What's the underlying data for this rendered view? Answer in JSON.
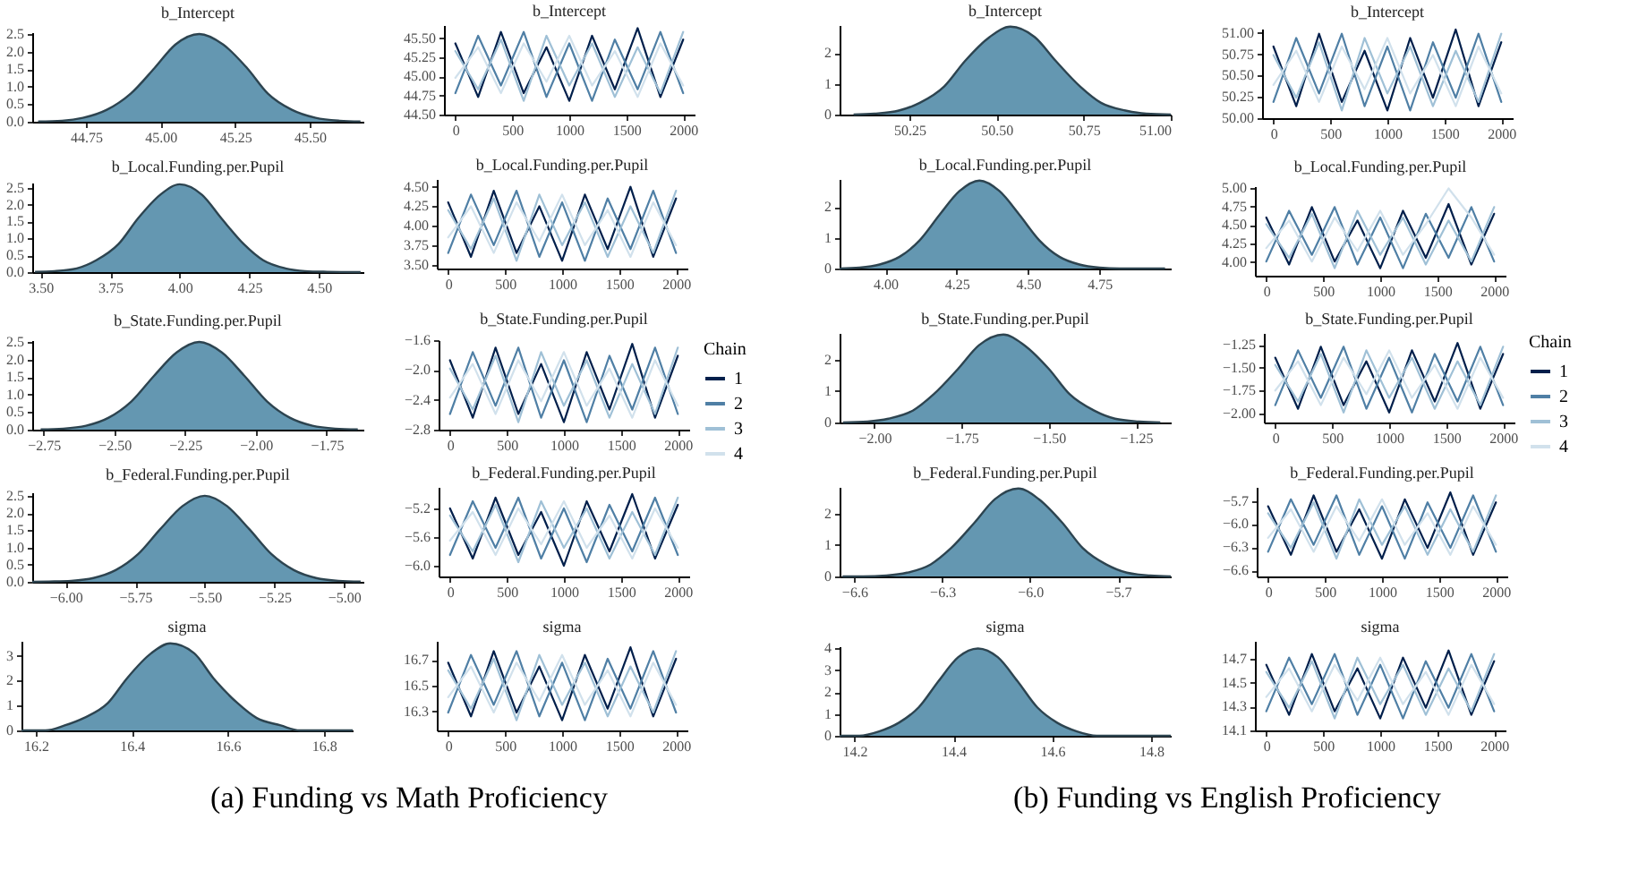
{
  "chart_data": [
    {
      "type": "area",
      "title": "b_Intercept",
      "x": [
        44.59,
        44.67,
        44.74,
        44.82,
        44.9,
        44.98,
        45.05,
        45.13,
        45.21,
        45.29,
        45.36,
        45.44,
        45.52,
        45.6,
        45.67
      ],
      "series": [
        {
          "color": "#6497b1",
          "values": [
            0.01,
            0.03,
            0.11,
            0.34,
            0.8,
            1.53,
            2.2,
            2.5,
            2.2,
            1.53,
            0.8,
            0.34,
            0.11,
            0.03,
            0.01
          ]
        }
      ],
      "xlim": [
        44.57,
        45.68
      ],
      "xticks": [
        44.75,
        {
          "value": 45,
          "label": "45.00"
        },
        45.25,
        {
          "value": 45.5,
          "label": "45.50"
        }
      ],
      "ylim": [
        0,
        2.55
      ],
      "yticks": [
        {
          "value": 0,
          "label": "0.0"
        },
        0.5,
        {
          "value": 1,
          "label": "1.0"
        },
        1.5,
        {
          "value": 2,
          "label": "2.0"
        },
        2.5
      ]
    },
    {
      "type": "line",
      "title": "b_Intercept",
      "x": [
        0,
        200,
        400,
        600,
        800,
        1000,
        1200,
        1400,
        1600,
        1800,
        2000
      ],
      "series": [
        {
          "color": "#011f4b",
          "values": [
            45.43,
            44.73,
            45.58,
            44.78,
            45.38,
            44.68,
            45.53,
            44.83,
            45.63,
            44.73,
            45.48
          ]
        },
        {
          "color": "#4f7fa5",
          "values": [
            44.78,
            45.53,
            44.88,
            45.58,
            44.73,
            45.43,
            44.68,
            45.48,
            44.83,
            45.58,
            44.78
          ]
        },
        {
          "color": "#9fc0d6",
          "values": [
            45.33,
            44.83,
            45.48,
            44.68,
            45.53,
            44.88,
            45.43,
            44.73,
            45.38,
            44.78,
            45.58
          ]
        },
        {
          "color": "#d1e1ec",
          "values": [
            44.98,
            45.38,
            44.78,
            45.43,
            44.93,
            45.53,
            44.88,
            45.33,
            44.73,
            45.43,
            44.88
          ]
        }
      ],
      "xlim": [
        -100,
        2100
      ],
      "xticks": [
        0,
        500,
        1000,
        1500,
        2000
      ],
      "ylim": [
        44.5,
        45.67
      ],
      "yticks": [
        {
          "value": 44.5,
          "label": "44.50"
        },
        44.75,
        {
          "value": 45,
          "label": "45.00"
        },
        45.25,
        {
          "value": 45.5,
          "label": "45.50"
        }
      ]
    },
    {
      "type": "area",
      "title": "b_Local.Funding.per.Pupil",
      "x": [
        3.48,
        3.55,
        3.63,
        3.7,
        3.78,
        3.85,
        3.93,
        4.0,
        4.08,
        4.15,
        4.23,
        4.3,
        4.38,
        4.45,
        4.53,
        4.65
      ],
      "series": [
        {
          "color": "#6497b1",
          "values": [
            0.01,
            0.03,
            0.11,
            0.35,
            0.83,
            1.59,
            2.29,
            2.6,
            2.29,
            1.59,
            0.83,
            0.35,
            0.11,
            0.03,
            0.01,
            0
          ]
        }
      ],
      "xlim": [
        3.47,
        4.66
      ],
      "xticks": [
        {
          "value": 3.5,
          "label": "3.50"
        },
        3.75,
        {
          "value": 4,
          "label": "4.00"
        },
        4.25,
        {
          "value": 4.5,
          "label": "4.50"
        }
      ],
      "ylim": [
        0,
        2.65
      ],
      "yticks": [
        {
          "value": 0,
          "label": "0.0"
        },
        0.5,
        {
          "value": 1,
          "label": "1.0"
        },
        1.5,
        {
          "value": 2,
          "label": "2.0"
        },
        2.5
      ]
    },
    {
      "type": "line",
      "title": "b_Local.Funding.per.Pupil",
      "x": [
        0,
        200,
        400,
        600,
        800,
        1000,
        1200,
        1400,
        1600,
        1800,
        2000
      ],
      "series": [
        {
          "color": "#011f4b",
          "values": [
            4.3,
            3.6,
            4.45,
            3.65,
            4.25,
            3.55,
            4.4,
            3.7,
            4.5,
            3.6,
            4.35
          ]
        },
        {
          "color": "#4f7fa5",
          "values": [
            3.65,
            4.4,
            3.75,
            4.45,
            3.6,
            4.3,
            3.55,
            4.35,
            3.7,
            4.45,
            3.65
          ]
        },
        {
          "color": "#9fc0d6",
          "values": [
            4.2,
            3.7,
            4.35,
            3.55,
            4.4,
            3.75,
            4.3,
            3.6,
            4.25,
            3.65,
            4.45
          ]
        },
        {
          "color": "#d1e1ec",
          "values": [
            3.85,
            4.25,
            3.65,
            4.3,
            3.8,
            4.4,
            3.75,
            4.2,
            3.6,
            4.3,
            3.75
          ]
        }
      ],
      "xlim": [
        -100,
        2100
      ],
      "xticks": [
        0,
        500,
        1000,
        1500,
        2000
      ],
      "ylim": [
        3.45,
        4.6
      ],
      "yticks": [
        {
          "value": 3.5,
          "label": "3.50"
        },
        3.75,
        {
          "value": 4,
          "label": "4.00"
        },
        4.25,
        {
          "value": 4.5,
          "label": "4.50"
        }
      ]
    },
    {
      "type": "area",
      "title": "b_State.Funding.per.Pupil",
      "x": [
        -2.76,
        -2.68,
        -2.6,
        -2.52,
        -2.44,
        -2.36,
        -2.28,
        -2.2,
        -2.12,
        -2.04,
        -1.96,
        -1.88,
        -1.8,
        -1.72,
        -1.64
      ],
      "series": [
        {
          "color": "#6497b1",
          "values": [
            0.01,
            0.03,
            0.11,
            0.34,
            0.8,
            1.53,
            2.2,
            2.5,
            2.2,
            1.53,
            0.8,
            0.34,
            0.11,
            0.03,
            0.01
          ]
        }
      ],
      "xlim": [
        -2.79,
        -1.62
      ],
      "xticks": [
        {
          "value": -2.75,
          "label": "−2.75"
        },
        {
          "value": -2.5,
          "label": "−2.50"
        },
        {
          "value": -2.25,
          "label": "−2.25"
        },
        {
          "value": -2,
          "label": "−2.00"
        },
        {
          "value": -1.75,
          "label": "−1.75"
        }
      ],
      "ylim": [
        0,
        2.55
      ],
      "yticks": [
        {
          "value": 0,
          "label": "0.0"
        },
        0.5,
        {
          "value": 1,
          "label": "1.0"
        },
        1.5,
        {
          "value": 2,
          "label": "2.0"
        },
        2.5
      ]
    },
    {
      "type": "line",
      "title": "b_State.Funding.per.Pupil",
      "legend": "right",
      "legend_title": "Chain",
      "x": [
        0,
        200,
        400,
        600,
        800,
        1000,
        1200,
        1400,
        1600,
        1800,
        2000
      ],
      "series": [
        {
          "name": "1",
          "color": "#011f4b",
          "values": [
            -1.87,
            -2.64,
            -1.7,
            -2.59,
            -1.92,
            -2.7,
            -1.76,
            -2.53,
            -1.65,
            -2.64,
            -1.81
          ]
        },
        {
          "name": "2",
          "color": "#4f7fa5",
          "values": [
            -2.59,
            -1.76,
            -2.48,
            -1.7,
            -2.64,
            -1.87,
            -2.7,
            -1.81,
            -2.53,
            -1.7,
            -2.59
          ]
        },
        {
          "name": "3",
          "color": "#9fc0d6",
          "values": [
            -1.98,
            -2.53,
            -1.81,
            -2.7,
            -1.76,
            -2.48,
            -1.87,
            -2.64,
            -1.92,
            -2.59,
            -1.7
          ]
        },
        {
          "name": "4",
          "color": "#d1e1ec",
          "values": [
            -2.37,
            -1.92,
            -2.59,
            -1.87,
            -2.42,
            -1.76,
            -2.48,
            -1.98,
            -2.64,
            -1.87,
            -2.48
          ]
        }
      ],
      "xlim": [
        -100,
        2100
      ],
      "xticks": [
        0,
        500,
        1000,
        1500,
        2000
      ],
      "ylim": [
        -2.8,
        -1.6
      ],
      "yticks": [
        {
          "value": -2.8,
          "label": "−2.8"
        },
        {
          "value": -2.4,
          "label": "−2.4"
        },
        {
          "value": -2,
          "label": "−2.0"
        },
        {
          "value": -1.6,
          "label": "−1.6"
        }
      ]
    },
    {
      "type": "area",
      "title": "b_Federal.Funding.per.Pupil",
      "x": [
        -6.12,
        -6.06,
        -5.98,
        -5.9,
        -5.82,
        -5.74,
        -5.66,
        -5.58,
        -5.5,
        -5.42,
        -5.34,
        -5.26,
        -5.18,
        -5.1,
        -5.02,
        -4.94
      ],
      "series": [
        {
          "color": "#6497b1",
          "values": [
            0,
            0.01,
            0.03,
            0.11,
            0.34,
            0.8,
            1.53,
            2.2,
            2.5,
            2.2,
            1.53,
            0.8,
            0.34,
            0.11,
            0.03,
            0.01
          ]
        }
      ],
      "xlim": [
        -6.12,
        -4.93
      ],
      "xticks": [
        {
          "value": -6,
          "label": "−6.00"
        },
        {
          "value": -5.75,
          "label": "−5.75"
        },
        {
          "value": -5.5,
          "label": "−5.50"
        },
        {
          "value": -5.25,
          "label": "−5.25"
        },
        {
          "value": -5,
          "label": "−5.00"
        }
      ],
      "ylim": [
        0,
        2.6
      ],
      "yticks": [
        {
          "value": 0,
          "label": "0.0"
        },
        0.5,
        {
          "value": 1,
          "label": "1.0"
        },
        1.5,
        {
          "value": 2,
          "label": "2.0"
        },
        2.5
      ]
    },
    {
      "type": "line",
      "title": "b_Federal.Funding.per.Pupil",
      "x": [
        0,
        200,
        400,
        600,
        800,
        1000,
        1200,
        1400,
        1600,
        1800,
        2000
      ],
      "series": [
        {
          "color": "#011f4b",
          "values": [
            -5.2,
            -5.9,
            -5.05,
            -5.85,
            -5.25,
            -6.0,
            -5.1,
            -5.8,
            -5.0,
            -5.9,
            -5.15
          ]
        },
        {
          "color": "#4f7fa5",
          "values": [
            -5.85,
            -5.1,
            -5.75,
            -5.05,
            -5.9,
            -5.2,
            -5.95,
            -5.15,
            -5.8,
            -5.05,
            -5.85
          ]
        },
        {
          "color": "#9fc0d6",
          "values": [
            -5.3,
            -5.8,
            -5.15,
            -5.95,
            -5.1,
            -5.75,
            -5.2,
            -5.9,
            -5.25,
            -5.85,
            -5.05
          ]
        },
        {
          "color": "#d1e1ec",
          "values": [
            -5.65,
            -5.25,
            -5.85,
            -5.2,
            -5.7,
            -5.1,
            -5.75,
            -5.3,
            -5.9,
            -5.2,
            -5.75
          ]
        }
      ],
      "xlim": [
        -100,
        2100
      ],
      "xticks": [
        0,
        500,
        1000,
        1500,
        2000
      ],
      "ylim": [
        -6.15,
        -4.9
      ],
      "yticks": [
        {
          "value": -6,
          "label": "−6.0"
        },
        {
          "value": -5.6,
          "label": "−5.6"
        },
        {
          "value": -5.2,
          "label": "−5.2"
        }
      ]
    },
    {
      "type": "area",
      "title": "sigma",
      "annotations": [
        "(a) Funding vs Math Proficiency"
      ],
      "x": [
        16.17,
        16.22,
        16.26,
        16.3,
        16.35,
        16.39,
        16.44,
        16.48,
        16.53,
        16.57,
        16.62,
        16.66,
        16.71,
        16.75,
        16.8,
        16.86
      ],
      "series": [
        {
          "color": "#6497b1",
          "values": [
            0,
            0,
            0.2,
            0.5,
            1.1,
            2.1,
            3.1,
            3.5,
            3.1,
            2.1,
            1.1,
            0.5,
            0.2,
            0,
            0,
            0
          ]
        }
      ],
      "xlim": [
        16.17,
        16.86
      ],
      "xticks": [
        16.2,
        16.4,
        16.6,
        16.8
      ],
      "ylim": [
        0,
        3.6
      ],
      "yticks": [
        0,
        1,
        2,
        3
      ]
    },
    {
      "type": "line",
      "title": "sigma",
      "x": [
        0,
        200,
        400,
        600,
        800,
        1000,
        1200,
        1400,
        1600,
        1800,
        2000
      ],
      "series": [
        {
          "color": "#011f4b",
          "values": [
            16.68,
            16.26,
            16.77,
            16.29,
            16.65,
            16.23,
            16.74,
            16.32,
            16.8,
            16.26,
            16.71
          ]
        },
        {
          "color": "#4f7fa5",
          "values": [
            16.29,
            16.74,
            16.35,
            16.77,
            16.26,
            16.68,
            16.23,
            16.71,
            16.32,
            16.77,
            16.29
          ]
        },
        {
          "color": "#9fc0d6",
          "values": [
            16.62,
            16.32,
            16.71,
            16.23,
            16.74,
            16.35,
            16.68,
            16.26,
            16.65,
            16.29,
            16.77
          ]
        },
        {
          "color": "#d1e1ec",
          "values": [
            16.41,
            16.65,
            16.29,
            16.68,
            16.38,
            16.74,
            16.35,
            16.62,
            16.26,
            16.68,
            16.35
          ]
        }
      ],
      "xlim": [
        -100,
        2100
      ],
      "xticks": [
        0,
        500,
        1000,
        1500,
        2000
      ],
      "ylim": [
        16.15,
        16.85
      ],
      "yticks": [
        16.3,
        16.5,
        16.7
      ]
    },
    {
      "type": "area",
      "title": "b_Intercept",
      "x": [
        50.09,
        50.15,
        50.22,
        50.28,
        50.35,
        50.41,
        50.48,
        50.54,
        50.61,
        50.67,
        50.74,
        50.8,
        50.87,
        50.93,
        51.0
      ],
      "series": [
        {
          "color": "#6497b1",
          "values": [
            0,
            0.03,
            0.13,
            0.38,
            0.91,
            1.74,
            2.51,
            2.85,
            2.51,
            1.74,
            0.91,
            0.38,
            0.13,
            0.03,
            0
          ]
        }
      ],
      "xlim": [
        50.05,
        51.0
      ],
      "xticks": [
        50.25,
        {
          "value": 50.5,
          "label": "50.50"
        },
        50.75,
        {
          "value": 51,
          "label": "51.00"
        }
      ],
      "ylim": [
        0,
        2.9
      ],
      "yticks": [
        0,
        1,
        2
      ]
    },
    {
      "type": "line",
      "title": "b_Intercept",
      "x": [
        0,
        200,
        400,
        600,
        800,
        1000,
        1200,
        1400,
        1600,
        1800,
        2000
      ],
      "series": [
        {
          "color": "#011f4b",
          "values": [
            50.84,
            50.14,
            50.99,
            50.19,
            50.79,
            50.09,
            50.94,
            50.24,
            51.04,
            50.14,
            50.89
          ]
        },
        {
          "color": "#4f7fa5",
          "values": [
            50.19,
            50.94,
            50.29,
            50.99,
            50.14,
            50.84,
            50.09,
            50.89,
            50.24,
            50.99,
            50.19
          ]
        },
        {
          "color": "#9fc0d6",
          "values": [
            50.74,
            50.24,
            50.89,
            50.09,
            50.94,
            50.29,
            50.84,
            50.14,
            50.79,
            50.19,
            50.99
          ]
        },
        {
          "color": "#d1e1ec",
          "values": [
            50.39,
            50.79,
            50.19,
            50.84,
            50.34,
            50.94,
            50.29,
            50.74,
            50.14,
            50.84,
            50.29
          ]
        }
      ],
      "xlim": [
        -100,
        2100
      ],
      "xticks": [
        0,
        500,
        1000,
        1500,
        2000
      ],
      "ylim": [
        50.0,
        51.05
      ],
      "yticks": [
        {
          "value": 50,
          "label": "50.00"
        },
        50.25,
        {
          "value": 50.5,
          "label": "50.50"
        },
        50.75,
        {
          "value": 51,
          "label": "51.00"
        }
      ]
    },
    {
      "type": "area",
      "title": "b_Local.Funding.per.Pupil",
      "x": [
        3.84,
        3.91,
        3.98,
        4.05,
        4.12,
        4.19,
        4.26,
        4.33,
        4.4,
        4.47,
        4.54,
        4.61,
        4.68,
        4.75,
        4.82,
        4.98
      ],
      "series": [
        {
          "color": "#6497b1",
          "values": [
            0,
            0.03,
            0.13,
            0.38,
            0.91,
            1.74,
            2.51,
            2.85,
            2.51,
            1.74,
            0.91,
            0.38,
            0.13,
            0.03,
            0,
            0
          ]
        }
      ],
      "xlim": [
        3.84,
        5.0
      ],
      "xticks": [
        {
          "value": 4,
          "label": "4.00"
        },
        4.25,
        {
          "value": 4.5,
          "label": "4.50"
        },
        4.75
      ],
      "ylim": [
        0,
        2.9
      ],
      "yticks": [
        0,
        1,
        2
      ]
    },
    {
      "type": "line",
      "title": "b_Local.Funding.per.Pupil",
      "x": [
        0,
        200,
        400,
        600,
        800,
        1000,
        1200,
        1400,
        1600,
        1800,
        2000
      ],
      "series": [
        {
          "color": "#011f4b",
          "values": [
            4.6,
            3.97,
            4.74,
            4.01,
            4.56,
            3.92,
            4.69,
            4.06,
            4.78,
            3.97,
            4.65
          ]
        },
        {
          "color": "#4f7fa5",
          "values": [
            4.01,
            4.69,
            4.1,
            4.74,
            3.97,
            4.6,
            3.92,
            4.65,
            4.06,
            4.74,
            4.01
          ]
        },
        {
          "color": "#9fc0d6",
          "values": [
            4.51,
            4.06,
            4.65,
            3.92,
            4.69,
            4.1,
            4.6,
            3.97,
            4.56,
            4.01,
            4.74
          ]
        },
        {
          "color": "#d1e1ec",
          "values": [
            4.19,
            4.56,
            4.01,
            4.6,
            4.15,
            4.69,
            4.1,
            4.51,
            4.99,
            4.6,
            4.1
          ]
        }
      ],
      "xlim": [
        -100,
        2100
      ],
      "xticks": [
        0,
        500,
        1000,
        1500,
        2000
      ],
      "ylim": [
        3.82,
        5.02
      ],
      "yticks": [
        {
          "value": 4,
          "label": "4.00"
        },
        4.25,
        {
          "value": 4.5,
          "label": "4.50"
        },
        4.75,
        {
          "value": 5,
          "label": "5.00"
        }
      ]
    },
    {
      "type": "area",
      "title": "b_State.Funding.per.Pupil",
      "x": [
        -2.09,
        -2.02,
        -1.96,
        -1.89,
        -1.83,
        -1.76,
        -1.7,
        -1.63,
        -1.57,
        -1.5,
        -1.44,
        -1.37,
        -1.31,
        -1.24,
        -1.18
      ],
      "series": [
        {
          "color": "#6497b1",
          "values": [
            0,
            0.03,
            0.12,
            0.38,
            0.9,
            1.71,
            2.46,
            2.8,
            2.46,
            1.71,
            0.9,
            0.38,
            0.12,
            0.03,
            0
          ]
        }
      ],
      "xlim": [
        -2.1,
        -1.15
      ],
      "xticks": [
        {
          "value": -2,
          "label": "−2.00"
        },
        {
          "value": -1.75,
          "label": "−1.75"
        },
        {
          "value": -1.5,
          "label": "−1.50"
        },
        {
          "value": -1.25,
          "label": "−1.25"
        }
      ],
      "ylim": [
        0,
        2.85
      ],
      "yticks": [
        0,
        1,
        2
      ]
    },
    {
      "type": "line",
      "title": "b_State.Funding.per.Pupil",
      "legend": "right",
      "legend_title": "Chain",
      "x": [
        0,
        200,
        400,
        600,
        800,
        1000,
        1200,
        1400,
        1600,
        1800,
        2000
      ],
      "series": [
        {
          "name": "1",
          "color": "#011f4b",
          "values": [
            -1.39,
            -1.95,
            -1.27,
            -1.91,
            -1.43,
            -1.99,
            -1.31,
            -1.87,
            -1.23,
            -1.95,
            -1.35
          ]
        },
        {
          "name": "2",
          "color": "#4f7fa5",
          "values": [
            -1.91,
            -1.31,
            -1.83,
            -1.27,
            -1.95,
            -1.39,
            -1.99,
            -1.35,
            -1.87,
            -1.27,
            -1.91
          ]
        },
        {
          "name": "3",
          "color": "#9fc0d6",
          "values": [
            -1.47,
            -1.87,
            -1.35,
            -1.99,
            -1.31,
            -1.83,
            -1.39,
            -1.95,
            -1.43,
            -1.91,
            -1.27
          ]
        },
        {
          "name": "4",
          "color": "#d1e1ec",
          "values": [
            -1.75,
            -1.43,
            -1.91,
            -1.39,
            -1.79,
            -1.31,
            -1.83,
            -1.47,
            -1.95,
            -1.39,
            -1.83
          ]
        }
      ],
      "xlim": [
        -100,
        2100
      ],
      "xticks": [
        0,
        500,
        1000,
        1500,
        2000
      ],
      "ylim": [
        -2.1,
        -1.12
      ],
      "yticks": [
        {
          "value": -2,
          "label": "−2.00"
        },
        {
          "value": -1.75,
          "label": "−1.75"
        },
        {
          "value": -1.5,
          "label": "−1.50"
        },
        {
          "value": -1.25,
          "label": "−1.25"
        }
      ]
    },
    {
      "type": "area",
      "title": "b_Federal.Funding.per.Pupil",
      "x": [
        -6.64,
        -6.57,
        -6.49,
        -6.42,
        -6.34,
        -6.27,
        -6.19,
        -6.12,
        -6.04,
        -5.97,
        -5.89,
        -5.82,
        -5.74,
        -5.67,
        -5.59,
        -5.52
      ],
      "series": [
        {
          "color": "#6497b1",
          "values": [
            0,
            0,
            0.03,
            0.12,
            0.38,
            0.9,
            1.71,
            2.46,
            2.8,
            2.46,
            1.71,
            0.9,
            0.38,
            0.12,
            0.03,
            0
          ]
        }
      ],
      "xlim": [
        -6.65,
        -5.52
      ],
      "xticks": [
        {
          "value": -6.6,
          "label": "−6.6"
        },
        {
          "value": -6.3,
          "label": "−6.3"
        },
        {
          "value": -6,
          "label": "−6.0"
        },
        {
          "value": -5.7,
          "label": "−5.7"
        }
      ],
      "ylim": [
        0,
        2.85
      ],
      "yticks": [
        0,
        1,
        2
      ]
    },
    {
      "type": "line",
      "title": "b_Federal.Funding.per.Pupil",
      "x": [
        0,
        200,
        400,
        600,
        800,
        1000,
        1200,
        1400,
        1600,
        1800,
        2000
      ],
      "series": [
        {
          "color": "#011f4b",
          "values": [
            -5.77,
            -6.4,
            -5.63,
            -6.36,
            -5.81,
            -6.45,
            -5.68,
            -6.31,
            -5.59,
            -6.4,
            -5.72
          ]
        },
        {
          "color": "#4f7fa5",
          "values": [
            -6.36,
            -5.68,
            -6.27,
            -5.63,
            -6.4,
            -5.77,
            -6.45,
            -5.72,
            -6.31,
            -5.63,
            -6.36
          ]
        },
        {
          "color": "#9fc0d6",
          "values": [
            -5.86,
            -6.31,
            -5.72,
            -6.45,
            -5.68,
            -6.27,
            -5.77,
            -6.4,
            -5.81,
            -6.36,
            -5.63
          ]
        },
        {
          "color": "#d1e1ec",
          "values": [
            -6.18,
            -5.81,
            -6.36,
            -5.77,
            -6.22,
            -5.68,
            -6.27,
            -5.86,
            -6.4,
            -5.77,
            -6.27
          ]
        }
      ],
      "xlim": [
        -100,
        2100
      ],
      "xticks": [
        0,
        500,
        1000,
        1500,
        2000
      ],
      "ylim": [
        -6.68,
        -5.52
      ],
      "yticks": [
        {
          "value": -6.6,
          "label": "−6.6"
        },
        {
          "value": -6.3,
          "label": "−6.3"
        },
        {
          "value": -6,
          "label": "−6.0"
        },
        {
          "value": -5.7,
          "label": "−5.7"
        }
      ]
    },
    {
      "type": "area",
      "title": "sigma",
      "annotations": [
        "(b) Funding vs English Proficiency"
      ],
      "x": [
        14.17,
        14.21,
        14.25,
        14.29,
        14.33,
        14.37,
        14.41,
        14.45,
        14.49,
        14.53,
        14.57,
        14.61,
        14.65,
        14.69,
        14.73,
        14.84
      ],
      "series": [
        {
          "color": "#6497b1",
          "values": [
            0,
            0,
            0.2,
            0.6,
            1.3,
            2.5,
            3.6,
            4.0,
            3.6,
            2.5,
            1.3,
            0.6,
            0.2,
            0,
            0,
            0
          ]
        }
      ],
      "xlim": [
        14.17,
        14.84
      ],
      "xticks": [
        14.2,
        14.4,
        14.6,
        14.8
      ],
      "ylim": [
        0,
        4.1
      ],
      "yticks": [
        0,
        1,
        2,
        3,
        4
      ]
    },
    {
      "type": "line",
      "title": "sigma",
      "x": [
        0,
        200,
        400,
        600,
        800,
        1000,
        1200,
        1400,
        1600,
        1800,
        2000
      ],
      "series": [
        {
          "color": "#011f4b",
          "values": [
            14.65,
            14.23,
            14.74,
            14.26,
            14.62,
            14.2,
            14.71,
            14.29,
            14.77,
            14.23,
            14.68
          ]
        },
        {
          "color": "#4f7fa5",
          "values": [
            14.26,
            14.71,
            14.32,
            14.74,
            14.23,
            14.65,
            14.2,
            14.68,
            14.29,
            14.74,
            14.26
          ]
        },
        {
          "color": "#9fc0d6",
          "values": [
            14.59,
            14.29,
            14.68,
            14.2,
            14.71,
            14.32,
            14.65,
            14.23,
            14.62,
            14.26,
            14.74
          ]
        },
        {
          "color": "#d1e1ec",
          "values": [
            14.38,
            14.62,
            14.26,
            14.65,
            14.35,
            14.71,
            14.32,
            14.59,
            14.23,
            14.65,
            14.32
          ]
        }
      ],
      "xlim": [
        -100,
        2100
      ],
      "xticks": [
        0,
        500,
        1000,
        1500,
        2000
      ],
      "ylim": [
        14.1,
        14.85
      ],
      "yticks": [
        14.1,
        14.3,
        14.5,
        14.7
      ]
    }
  ]
}
